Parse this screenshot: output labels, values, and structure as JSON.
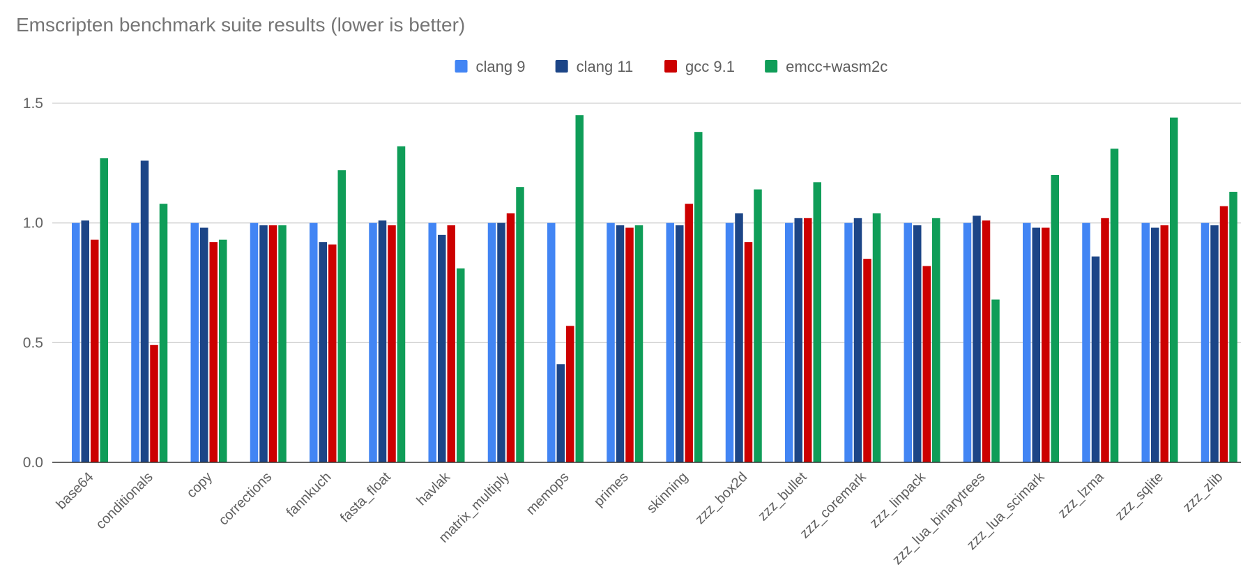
{
  "chart_data": {
    "type": "bar",
    "title": "Emscripten benchmark suite results (lower is better)",
    "xlabel": "",
    "ylabel": "",
    "ylim": [
      0,
      1.5
    ],
    "y_ticks": [
      "0.0",
      "0.5",
      "1.0",
      "1.5"
    ],
    "grid": true,
    "legend_position": "top",
    "categories": [
      "base64",
      "conditionals",
      "copy",
      "corrections",
      "fannkuch",
      "fasta_float",
      "havlak",
      "matrix_multiply",
      "memops",
      "primes",
      "skinning",
      "zzz_box2d",
      "zzz_bullet",
      "zzz_coremark",
      "zzz_linpack",
      "zzz_lua_binarytrees",
      "zzz_lua_scimark",
      "zzz_lzma",
      "zzz_sqlite",
      "zzz_zlib"
    ],
    "series": [
      {
        "name": "clang 9",
        "color": "#4285f4",
        "values": [
          1.0,
          1.0,
          1.0,
          1.0,
          1.0,
          1.0,
          1.0,
          1.0,
          1.0,
          1.0,
          1.0,
          1.0,
          1.0,
          1.0,
          1.0,
          1.0,
          1.0,
          1.0,
          1.0,
          1.0
        ]
      },
      {
        "name": "clang 11",
        "color": "#1c4587",
        "values": [
          1.01,
          1.26,
          0.98,
          0.99,
          0.92,
          1.01,
          0.95,
          1.0,
          0.41,
          0.99,
          0.99,
          1.04,
          1.02,
          1.02,
          0.99,
          1.03,
          0.98,
          0.86,
          0.98,
          0.99
        ]
      },
      {
        "name": "gcc 9.1",
        "color": "#cc0000",
        "values": [
          0.93,
          0.49,
          0.92,
          0.99,
          0.91,
          0.99,
          0.99,
          1.04,
          0.57,
          0.98,
          1.08,
          0.92,
          1.02,
          0.85,
          0.82,
          1.01,
          0.98,
          1.02,
          0.99,
          1.07
        ]
      },
      {
        "name": "emcc+wasm2c",
        "color": "#0f9d58",
        "values": [
          1.27,
          1.08,
          0.93,
          0.99,
          1.22,
          1.32,
          0.81,
          1.15,
          1.45,
          0.99,
          1.38,
          1.14,
          1.17,
          1.04,
          1.02,
          0.68,
          1.2,
          1.31,
          1.44,
          1.13
        ]
      }
    ]
  }
}
